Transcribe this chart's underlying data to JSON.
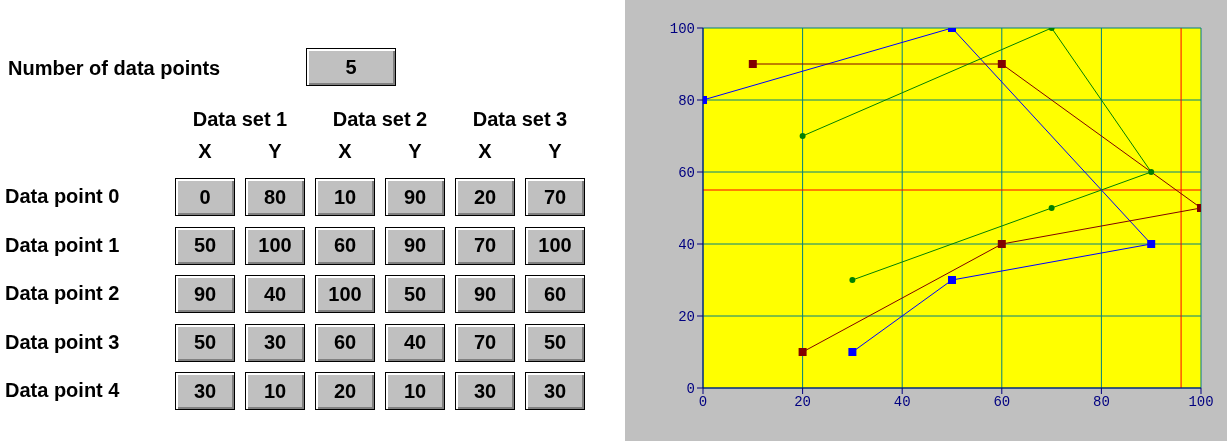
{
  "chart_data": {
    "type": "line",
    "annotations": [
      "Number of data points",
      "5",
      "Data set 1",
      "Data set 2",
      "Data set 3",
      "X",
      "Y",
      "Data point 0",
      "Data point 1",
      "Data point 2",
      "Data point 3",
      "Data point 4",
      "0",
      "80",
      "10",
      "90",
      "20",
      "70",
      "50",
      "100",
      "60",
      "90",
      "70",
      "100",
      "90",
      "40",
      "100",
      "50",
      "90",
      "60",
      "50",
      "30",
      "60",
      "40",
      "70",
      "50",
      "30",
      "10",
      "20",
      "10",
      "30",
      "30"
    ],
    "series": [
      {
        "color": "#0000ff",
        "marker": "square",
        "x": [
          0,
          50,
          90,
          50,
          30
        ],
        "values": [
          80,
          100,
          40,
          30,
          10
        ]
      },
      {
        "color": "#800000",
        "marker": "square",
        "x": [
          10,
          60,
          100,
          60,
          20
        ],
        "values": [
          90,
          90,
          50,
          40,
          10
        ]
      },
      {
        "color": "#008000",
        "marker": "circle",
        "x": [
          20,
          70,
          90,
          70,
          30
        ],
        "values": [
          70,
          100,
          60,
          50,
          30
        ]
      }
    ],
    "xlim": [
      0,
      100
    ],
    "xticks": [
      0,
      20,
      40,
      60,
      80,
      100
    ],
    "ylim": [
      0,
      100
    ],
    "yticks": [
      0,
      20,
      40,
      60,
      80,
      100
    ],
    "grid": true,
    "ref_lines": [
      {
        "axis": "x",
        "value": 96,
        "color": "#ff0000"
      },
      {
        "axis": "y",
        "value": 55,
        "color": "#ff0000"
      }
    ]
  }
}
